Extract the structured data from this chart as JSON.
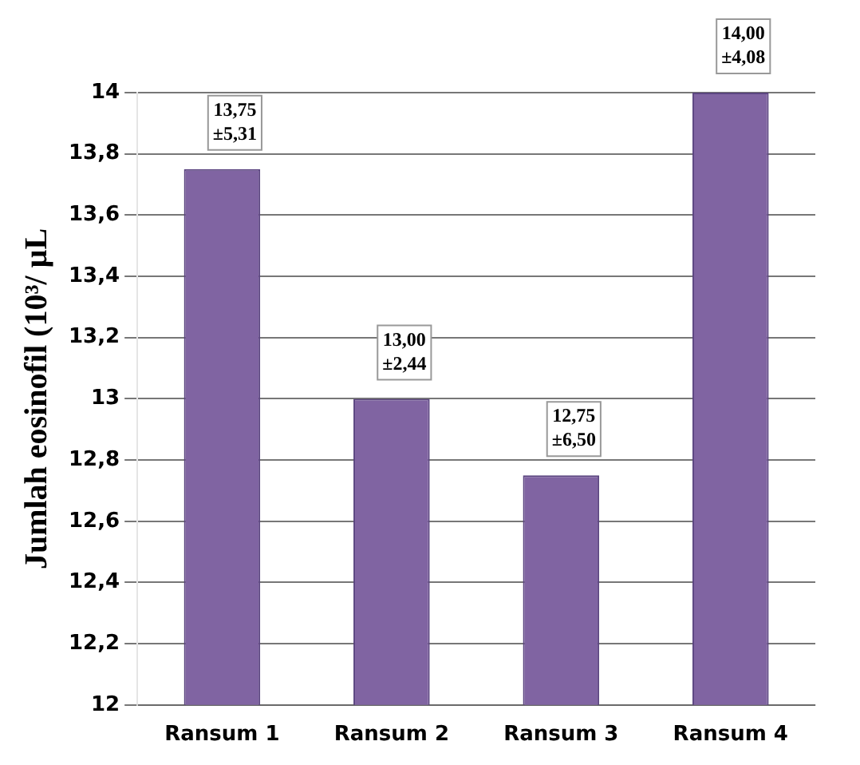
{
  "chart_data": {
    "type": "bar",
    "ylabel": "Jumlah eosinofil (10³/ µL",
    "categories": [
      "Ransum 1",
      "Ransum 2",
      "Ransum 3",
      "Ransum 4"
    ],
    "values": [
      13.75,
      13,
      12.75,
      14
    ],
    "color": "#8064a2",
    "value_labels": [
      "13,75\n±5,31",
      "13,00\n±2,44",
      "12,75\n±6,50",
      "14,00\n±4,08"
    ],
    "ylim": [
      12,
      14
    ],
    "yticks": [
      12,
      {
        "value": 12.2,
        "label": "12,2"
      },
      {
        "value": 12.4,
        "label": "12,4"
      },
      {
        "value": 12.6,
        "label": "12,6"
      },
      {
        "value": 12.8,
        "label": "12,8"
      },
      13,
      {
        "value": 13.2,
        "label": "13,2"
      },
      {
        "value": 13.4,
        "label": "13,4"
      },
      {
        "value": 13.6,
        "label": "13,6"
      },
      {
        "value": 13.8,
        "label": "13,8"
      },
      14
    ],
    "grid": "y",
    "legend": false
  }
}
